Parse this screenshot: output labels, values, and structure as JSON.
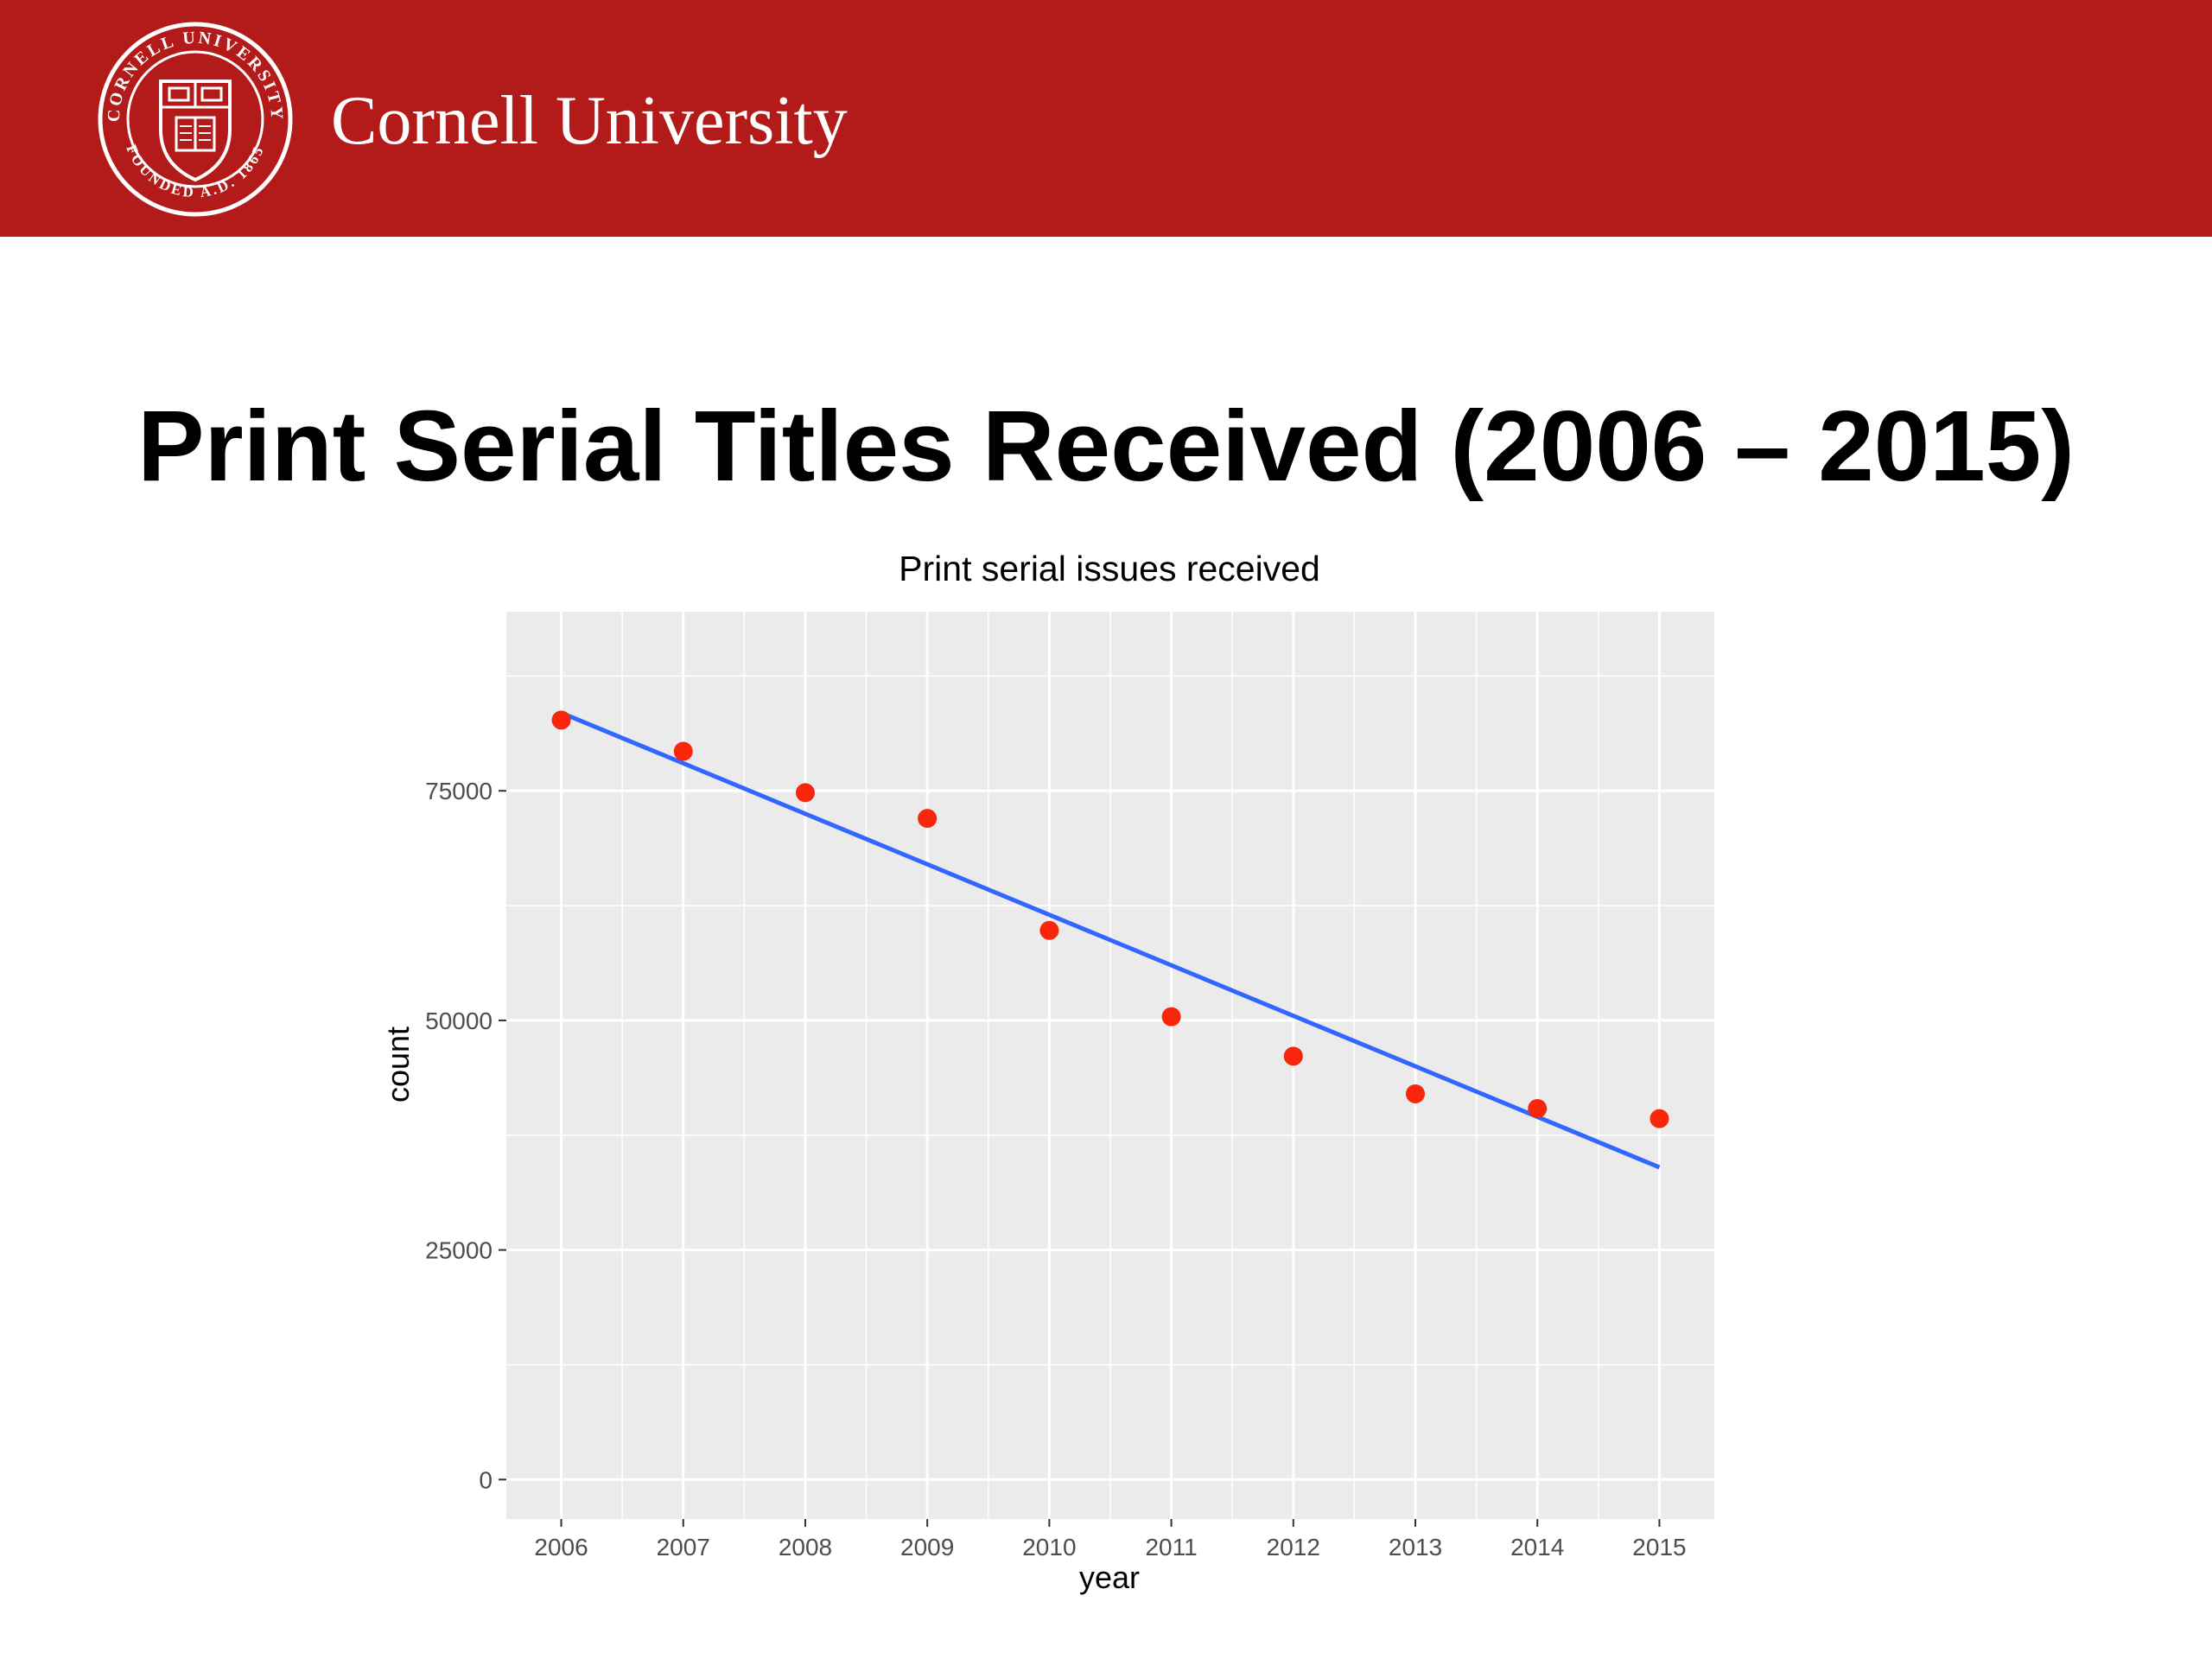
{
  "header": {
    "brand_name": "Cornell University",
    "seal_lettering": "CORNELL UNIVERSITY · FOUNDED A.D. 1865",
    "background_color": "#B31B1B"
  },
  "slide": {
    "title": "Print Serial Titles Received (2006 – 2015)"
  },
  "chart_data": {
    "type": "scatter",
    "title": "Print serial issues received",
    "xlabel": "year",
    "ylabel": "count",
    "x": [
      2006,
      2007,
      2008,
      2009,
      2010,
      2011,
      2012,
      2013,
      2014,
      2015
    ],
    "series": [
      {
        "values": [
          82700,
          79300,
          74800,
          72000,
          59800,
          50400,
          46100,
          42000,
          40400,
          39300
        ],
        "color": "#F8260A"
      }
    ],
    "trend_line": {
      "type": "linear",
      "start": [
        2006,
        83500
      ],
      "end": [
        2015,
        34000
      ],
      "color": "#3366FF"
    },
    "x_ticks": [
      2006,
      2007,
      2008,
      2009,
      2010,
      2011,
      2012,
      2013,
      2014,
      2015
    ],
    "y_ticks": [
      0,
      25000,
      50000,
      75000
    ],
    "xlim": [
      2005.55,
      2015.45
    ],
    "ylim": [
      -4300,
      94500
    ],
    "grid": true,
    "panel_color": "#EBEBEB",
    "legend": "none"
  }
}
